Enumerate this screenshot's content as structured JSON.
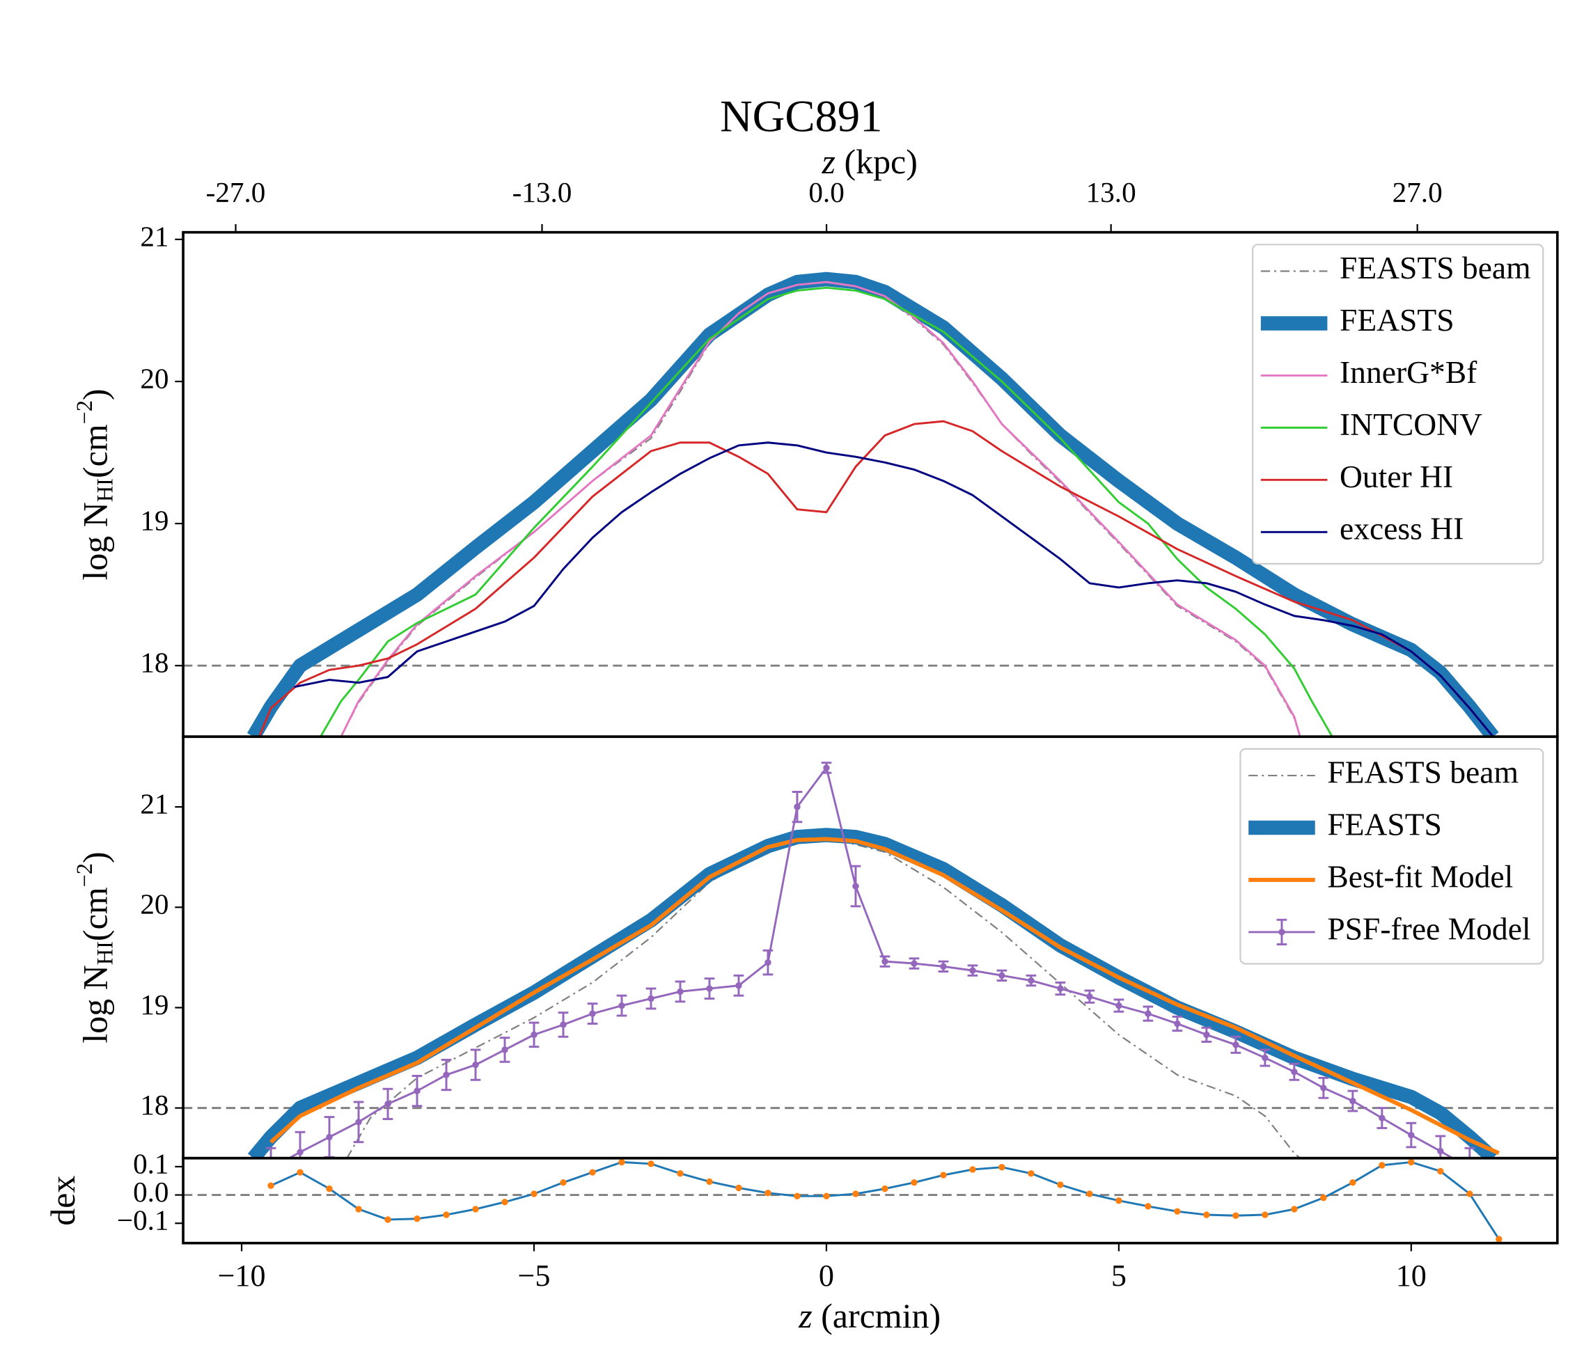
{
  "chart_data": [
    {
      "type": "line",
      "title": "NGC891",
      "x2label": {
        "var": "z",
        "unit": "(kpc)"
      },
      "x2lim": [
        -29.4,
        33.4
      ],
      "x2ticks": [
        {
          "value": -27,
          "label": "-27.0"
        },
        {
          "value": -13,
          "label": "-13.0"
        },
        {
          "value": 0,
          "label": "0.0"
        },
        {
          "value": 13,
          "label": "13.0"
        },
        {
          "value": 27,
          "label": "27.0"
        }
      ],
      "ylabel": {
        "main": "log N",
        "sub": "HI",
        "unit": "(cm",
        "sup": "−2",
        "end": ")"
      },
      "xlim": [
        -11.0,
        12.5
      ],
      "ylim": [
        17.5,
        21.05
      ],
      "yticks": [
        18,
        19,
        20,
        21
      ],
      "hline": 18,
      "legend": "upper right",
      "series": [
        {
          "name": "FEASTS beam",
          "color": "#808080",
          "linewidth": 1.5,
          "style": "dashdot",
          "x": [
            -8.3,
            -8,
            -7.5,
            -7,
            -6,
            -5,
            -4,
            -3,
            -2.5,
            -2,
            -1.5,
            -1,
            -0.5,
            0,
            0.5,
            1,
            1.5,
            2,
            2.5,
            3,
            3.5,
            4,
            5,
            6,
            7,
            7.5,
            8,
            8.1
          ],
          "values": [
            17.5,
            17.74,
            18.03,
            18.28,
            18.62,
            18.94,
            19.3,
            19.6,
            19.93,
            20.27,
            20.47,
            20.61,
            20.68,
            20.7,
            20.67,
            20.59,
            20.44,
            20.26,
            19.99,
            19.7,
            19.49,
            19.29,
            18.86,
            18.42,
            18.17,
            17.99,
            17.63,
            17.5
          ]
        },
        {
          "name": "FEASTS",
          "color": "#1f77b4",
          "linewidth": 14,
          "style": "solid",
          "x": [
            -9.8,
            -9.5,
            -9,
            -8,
            -7,
            -6,
            -5,
            -4,
            -3,
            -2,
            -1,
            -0.5,
            0,
            0.5,
            1,
            2,
            3,
            4,
            5,
            6,
            7,
            8,
            9,
            10,
            10.5,
            11,
            11.4
          ],
          "values": [
            17.5,
            17.71,
            18.0,
            18.25,
            18.5,
            18.83,
            19.15,
            19.51,
            19.87,
            20.33,
            20.61,
            20.7,
            20.72,
            20.7,
            20.63,
            20.38,
            20.02,
            19.62,
            19.3,
            19.0,
            18.76,
            18.5,
            18.29,
            18.11,
            17.95,
            17.71,
            17.5
          ]
        },
        {
          "name": "InnerG*Bf",
          "color": "#e377c2",
          "linewidth": 2,
          "style": "solid",
          "x": [
            -8.3,
            -8,
            -7.5,
            -7,
            -6,
            -5,
            -4,
            -3,
            -2.5,
            -2,
            -1.5,
            -1,
            -0.5,
            0,
            0.5,
            1,
            1.5,
            2,
            2.5,
            3,
            3.5,
            4,
            5,
            6,
            7,
            7.5,
            8,
            8.1
          ],
          "values": [
            17.5,
            17.75,
            18.04,
            18.29,
            18.63,
            18.94,
            19.3,
            19.62,
            19.95,
            20.28,
            20.48,
            20.62,
            20.68,
            20.7,
            20.67,
            20.6,
            20.45,
            20.27,
            20.0,
            19.7,
            19.5,
            19.3,
            18.87,
            18.43,
            18.18,
            18.0,
            17.64,
            17.5
          ]
        },
        {
          "name": "INTCONV",
          "color": "#33cc33",
          "linewidth": 2,
          "style": "solid",
          "x": [
            -8.65,
            -8.3,
            -8,
            -7.5,
            -7,
            -6,
            -5,
            -4,
            -3,
            -2,
            -1,
            -0.5,
            0,
            0.5,
            1,
            2,
            3,
            4,
            5,
            5.5,
            6,
            6.5,
            7,
            7.5,
            8,
            8.3,
            8.65
          ],
          "values": [
            17.5,
            17.75,
            17.9,
            18.17,
            18.3,
            18.5,
            18.97,
            19.4,
            19.85,
            20.3,
            20.58,
            20.64,
            20.66,
            20.64,
            20.58,
            20.35,
            20.0,
            19.6,
            19.15,
            19.0,
            18.75,
            18.55,
            18.4,
            18.22,
            17.98,
            17.75,
            17.5
          ]
        },
        {
          "name": "Outer HI",
          "color": "#d62728",
          "linewidth": 2,
          "style": "solid",
          "x": [
            -9.7,
            -9.5,
            -9,
            -8.5,
            -8,
            -7.5,
            -7,
            -6,
            -5,
            -4,
            -3,
            -2.5,
            -2,
            -1.5,
            -1,
            -0.5,
            0,
            0.5,
            1,
            1.5,
            2,
            2.5,
            3,
            4,
            5,
            6,
            7,
            8,
            9,
            10,
            10.5,
            11,
            11.4
          ],
          "values": [
            17.5,
            17.7,
            17.88,
            17.97,
            18.0,
            18.05,
            18.15,
            18.4,
            18.76,
            19.19,
            19.51,
            19.57,
            19.57,
            19.47,
            19.35,
            19.1,
            19.08,
            19.4,
            19.62,
            19.7,
            19.72,
            19.65,
            19.51,
            19.26,
            19.05,
            18.82,
            18.63,
            18.45,
            18.32,
            18.1,
            17.93,
            17.7,
            17.5
          ]
        },
        {
          "name": "excess HI",
          "color": "#000080",
          "linewidth": 2,
          "style": "solid",
          "x": [
            -9.1,
            -8.5,
            -8,
            -7.5,
            -7,
            -6.5,
            -6,
            -5.5,
            -5,
            -4.5,
            -4,
            -3.5,
            -3,
            -2.5,
            -2,
            -1.5,
            -1,
            -0.5,
            0,
            0.5,
            1,
            1.5,
            2,
            2.5,
            3,
            3.5,
            4,
            4.5,
            5,
            5.5,
            6,
            6.5,
            7,
            7.5,
            8,
            8.5,
            9,
            9.5,
            10,
            10.5,
            11,
            11.4
          ],
          "values": [
            17.85,
            17.9,
            17.88,
            17.92,
            18.1,
            18.17,
            18.24,
            18.31,
            18.42,
            18.68,
            18.9,
            19.08,
            19.22,
            19.35,
            19.46,
            19.55,
            19.57,
            19.55,
            19.5,
            19.47,
            19.43,
            19.38,
            19.3,
            19.2,
            19.05,
            18.9,
            18.75,
            18.58,
            18.55,
            18.58,
            18.6,
            18.58,
            18.52,
            18.43,
            18.35,
            18.32,
            18.28,
            18.22,
            18.1,
            17.93,
            17.7,
            17.5
          ]
        }
      ]
    },
    {
      "type": "line",
      "ylabel": {
        "main": "log N",
        "sub": "HI",
        "unit": "(cm",
        "sup": "−2",
        "end": ")"
      },
      "xlim": [
        -11.0,
        12.5
      ],
      "ylim": [
        17.5,
        21.7
      ],
      "yticks": [
        18,
        19,
        20,
        21
      ],
      "hline": 18,
      "legend": "upper right",
      "series": [
        {
          "name": "FEASTS beam",
          "color": "#808080",
          "linewidth": 1.5,
          "style": "dashdot",
          "x": [
            -8.2,
            -7.8,
            -7,
            -6,
            -5,
            -4,
            -3,
            -2,
            -1,
            0,
            1,
            2,
            3,
            4,
            5,
            6,
            7,
            7.5,
            8,
            8.1
          ],
          "values": [
            17.5,
            17.9,
            18.3,
            18.6,
            18.9,
            19.25,
            19.7,
            20.25,
            20.6,
            20.7,
            20.55,
            20.2,
            19.75,
            19.24,
            18.73,
            18.33,
            18.12,
            17.92,
            17.55,
            17.5
          ]
        },
        {
          "name": "FEASTS",
          "color": "#1f77b4",
          "linewidth": 14,
          "style": "solid",
          "x": [
            -9.8,
            -9.5,
            -9,
            -8,
            -7,
            -6,
            -5,
            -4,
            -3,
            -2,
            -1,
            -0.5,
            0,
            0.5,
            1,
            2,
            3,
            4,
            5,
            6,
            7,
            8,
            9,
            10,
            10.5,
            11,
            11.4
          ],
          "values": [
            17.5,
            17.71,
            18.0,
            18.25,
            18.5,
            18.83,
            19.15,
            19.51,
            19.87,
            20.33,
            20.61,
            20.7,
            20.72,
            20.7,
            20.63,
            20.38,
            20.02,
            19.62,
            19.3,
            19.0,
            18.76,
            18.5,
            18.29,
            18.11,
            17.95,
            17.71,
            17.5
          ]
        },
        {
          "name": "Best-fit Model",
          "color": "#ff7f0e",
          "linewidth": 4,
          "style": "solid",
          "x": [
            -9.5,
            -9,
            -8,
            -7,
            -6,
            -5,
            -4,
            -3,
            -2,
            -1,
            -0.5,
            0,
            0.5,
            1,
            2,
            3,
            4,
            5,
            6,
            7,
            8,
            9,
            10,
            10.5,
            11,
            11.5
          ],
          "values": [
            17.66,
            17.92,
            18.2,
            18.45,
            18.8,
            19.15,
            19.48,
            19.82,
            20.3,
            20.6,
            20.67,
            20.68,
            20.66,
            20.58,
            20.32,
            19.97,
            19.6,
            19.3,
            19.03,
            18.8,
            18.52,
            18.25,
            17.98,
            17.83,
            17.68,
            17.55
          ]
        },
        {
          "name": "PSF-free Model",
          "color": "#9467bd",
          "linewidth": 2,
          "style": "solid",
          "marker": true,
          "x": [
            -9.5,
            -9,
            -8.5,
            -8,
            -7.5,
            -7,
            -6.5,
            -6,
            -5.5,
            -5,
            -4.5,
            -4,
            -3.5,
            -3,
            -2.5,
            -2,
            -1.5,
            -1,
            -0.5,
            0,
            0.5,
            1,
            1.5,
            2,
            2.5,
            3,
            3.5,
            4,
            4.5,
            5,
            5.5,
            6,
            6.5,
            7,
            7.5,
            8,
            8.5,
            9,
            9.5,
            10,
            10.5,
            11
          ],
          "values": [
            17.4,
            17.56,
            17.71,
            17.86,
            18.04,
            18.17,
            18.33,
            18.43,
            18.58,
            18.73,
            18.83,
            18.94,
            19.02,
            19.09,
            19.16,
            19.19,
            19.22,
            19.45,
            21.0,
            21.39,
            20.21,
            19.46,
            19.44,
            19.41,
            19.37,
            19.32,
            19.27,
            19.19,
            19.11,
            19.02,
            18.94,
            18.84,
            18.73,
            18.63,
            18.5,
            18.36,
            18.2,
            18.07,
            17.9,
            17.73,
            17.57,
            17.4
          ],
          "errors": [
            0.2,
            0.2,
            0.2,
            0.2,
            0.15,
            0.15,
            0.15,
            0.15,
            0.12,
            0.12,
            0.12,
            0.1,
            0.1,
            0.1,
            0.1,
            0.1,
            0.1,
            0.12,
            0.15,
            0.05,
            0.2,
            0.05,
            0.05,
            0.05,
            0.05,
            0.05,
            0.05,
            0.06,
            0.06,
            0.06,
            0.07,
            0.07,
            0.07,
            0.08,
            0.08,
            0.08,
            0.1,
            0.1,
            0.1,
            0.12,
            0.15,
            0.2
          ]
        }
      ]
    },
    {
      "type": "line",
      "ylabel": "dex",
      "xlabel": {
        "var": "z",
        "unit": "(arcmin)"
      },
      "xlim": [
        -11.0,
        12.5
      ],
      "ylim": [
        -0.17,
        0.13
      ],
      "yticks": [
        0.1,
        {
          "value": 0,
          "label": "0.0"
        },
        {
          "value": -0.1,
          "label": "−0.1"
        }
      ],
      "xticks": [
        {
          "value": -10,
          "label": "−10"
        },
        {
          "value": -5,
          "label": "−5"
        },
        0,
        5,
        10
      ],
      "hline": 0,
      "series": [
        {
          "color": "#1f77b4",
          "marker_color": "#ff7f0e",
          "linewidth": 2,
          "style": "solid",
          "marker": true,
          "x": [
            -9.5,
            -9,
            -8.5,
            -8,
            -7.5,
            -7,
            -6.5,
            -6,
            -5.5,
            -5,
            -4.5,
            -4,
            -3.5,
            -3,
            -2.5,
            -2,
            -1.5,
            -1,
            -0.5,
            0,
            0.5,
            1,
            1.5,
            2,
            2.5,
            3,
            3.5,
            4,
            4.5,
            5,
            5.5,
            6,
            6.5,
            7,
            7.5,
            8,
            8.5,
            9,
            9.5,
            10,
            10.5,
            11,
            11.5
          ],
          "values": [
            0.033,
            0.08,
            0.022,
            -0.05,
            -0.087,
            -0.084,
            -0.07,
            -0.05,
            -0.025,
            0.004,
            0.044,
            0.08,
            0.116,
            0.11,
            0.076,
            0.047,
            0.025,
            0.007,
            -0.004,
            -0.004,
            0.004,
            0.022,
            0.044,
            0.07,
            0.09,
            0.098,
            0.076,
            0.036,
            0.004,
            -0.02,
            -0.04,
            -0.058,
            -0.07,
            -0.073,
            -0.07,
            -0.05,
            -0.01,
            0.044,
            0.105,
            0.116,
            0.084,
            0.004,
            -0.156
          ]
        }
      ]
    }
  ]
}
